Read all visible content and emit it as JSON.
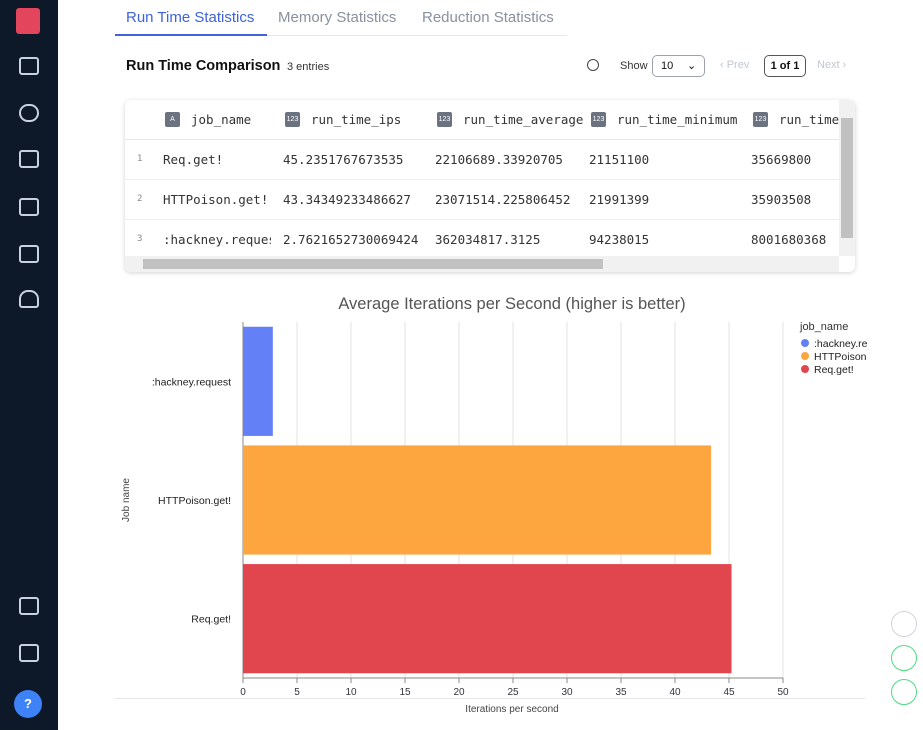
{
  "tabs": [
    "Run Time Statistics",
    "Memory Statistics",
    "Reduction Statistics"
  ],
  "table_title": "Run Time Comparison",
  "entries": "3 entries",
  "show_label": "Show",
  "page_size": "10",
  "pagination": {
    "prev": "‹ Prev",
    "page": "1 of 1",
    "next": "Next ›"
  },
  "table": {
    "columns": [
      {
        "type": "A",
        "name": "job_name"
      },
      {
        "type": "123",
        "name": "run_time_ips"
      },
      {
        "type": "123",
        "name": "run_time_average"
      },
      {
        "type": "123",
        "name": "run_time_minimum"
      },
      {
        "type": "123",
        "name": "run_time"
      }
    ],
    "rows": [
      [
        "1",
        "Req.get!",
        "45.2351767673535",
        "22106689.33920705",
        "21151100",
        "35669800"
      ],
      [
        "2",
        "HTTPoison.get!",
        "43.34349233486627",
        "23071514.225806452",
        "21991399",
        "35903508"
      ],
      [
        "3",
        ":hackney.request",
        "2.7621652730069424",
        "362034817.3125",
        "94238015",
        "8001680368"
      ]
    ]
  },
  "help": "?",
  "chart_data": {
    "type": "bar",
    "orientation": "horizontal",
    "title": "Average Iterations per Second (higher is better)",
    "x_label": "Iterations per second",
    "y_label": "Job name",
    "legend_title": "job_name",
    "legend": "right",
    "grid": true,
    "categories": [
      ":hackney.request",
      "HTTPoison.get!",
      "Req.get!"
    ],
    "series": [
      {
        "name": ":hackney.request",
        "color": "#6380f7",
        "values": [
          2.7621652730069424,
          null,
          null
        ]
      },
      {
        "name": "HTTPoison.get!",
        "color": "#fda63f",
        "values": [
          null,
          43.34349233486627,
          null
        ]
      },
      {
        "name": "Req.get!",
        "color": "#e1464f",
        "values": [
          null,
          null,
          45.2351767673535
        ]
      }
    ],
    "xlim": [
      0,
      50
    ],
    "xticks": [
      0,
      5,
      10,
      15,
      20,
      25,
      30,
      35,
      40,
      45,
      50
    ]
  }
}
